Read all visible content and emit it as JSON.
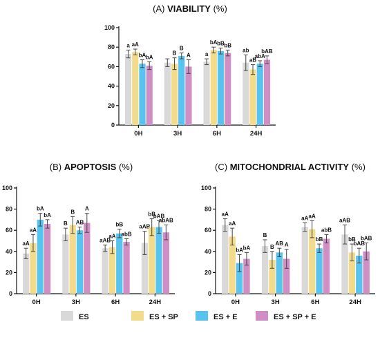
{
  "chart_data": [
    {
      "type": "bar",
      "title_prefix": "(A)",
      "title_bold": "VIABILITY",
      "title_suffix": "(%)",
      "categories": [
        "0H",
        "3H",
        "6H",
        "24H"
      ],
      "ylim": [
        0,
        100
      ],
      "yticks": [
        0,
        20,
        40,
        60,
        80,
        100
      ],
      "series": [
        {
          "name": "ES",
          "color": "#d9d9d9",
          "values": [
            73,
            64,
            65,
            64
          ],
          "errors": [
            4,
            4,
            3,
            8
          ]
        },
        {
          "name": "ES + SP",
          "color": "#f2dc8c",
          "values": [
            75,
            63,
            77,
            57
          ],
          "errors": [
            3,
            6,
            3,
            5
          ]
        },
        {
          "name": "ES + E",
          "color": "#58c3ef",
          "values": [
            63,
            71,
            76,
            63
          ],
          "errors": [
            4,
            3,
            3,
            3
          ]
        },
        {
          "name": "ES + SP + E",
          "color": "#cf8fc4",
          "values": [
            61,
            60,
            74,
            67
          ],
          "errors": [
            4,
            7,
            3,
            4
          ]
        }
      ],
      "annotations": [
        [
          "a",
          "aA",
          "bA",
          "bA"
        ],
        [
          "",
          "B",
          "B",
          "A"
        ],
        [
          "a",
          "bA",
          "bB",
          "bB"
        ],
        [
          "ab",
          "aB",
          "abA",
          "bAB"
        ]
      ]
    },
    {
      "type": "bar",
      "title_prefix": "(B)",
      "title_bold": "APOPTOSIS",
      "title_suffix": "(%)",
      "categories": [
        "0H",
        "3H",
        "6H",
        "24H"
      ],
      "ylim": [
        0,
        100
      ],
      "yticks": [
        0,
        20,
        40,
        60,
        80,
        100
      ],
      "series": [
        {
          "name": "ES",
          "color": "#d9d9d9",
          "values": [
            38,
            56,
            43,
            48
          ],
          "errors": [
            5,
            6,
            3,
            11
          ]
        },
        {
          "name": "ES + SP",
          "color": "#f2dc8c",
          "values": [
            48,
            65,
            44,
            63
          ],
          "errors": [
            8,
            8,
            6,
            8
          ]
        },
        {
          "name": "ES + E",
          "color": "#58c3ef",
          "values": [
            70,
            60,
            57,
            63
          ],
          "errors": [
            6,
            3,
            4,
            6
          ]
        },
        {
          "name": "ES + SP + E",
          "color": "#cf8fc4",
          "values": [
            66,
            67,
            49,
            58
          ],
          "errors": [
            4,
            9,
            3,
            7
          ]
        }
      ],
      "annotations": [
        [
          "aA",
          "aA",
          "bA",
          "bA"
        ],
        [
          "B",
          "B",
          "AB",
          "A"
        ],
        [
          "aAB",
          "aA",
          "bB",
          "abB"
        ],
        [
          "aAB",
          "bB",
          "bAB",
          "abAB"
        ]
      ]
    },
    {
      "type": "bar",
      "title_prefix": "(C)",
      "title_bold": "MITOCHONDRIAL ACTIVITY",
      "title_suffix": "(%)",
      "categories": [
        "0H",
        "3H",
        "6H",
        "24H"
      ],
      "ylim": [
        0,
        100
      ],
      "yticks": [
        0,
        20,
        40,
        60,
        80,
        100
      ],
      "series": [
        {
          "name": "ES",
          "color": "#d9d9d9",
          "values": [
            65,
            45,
            63,
            56
          ],
          "errors": [
            6,
            6,
            4,
            9
          ]
        },
        {
          "name": "ES + SP",
          "color": "#f2dc8c",
          "values": [
            54,
            32,
            61,
            39
          ],
          "errors": [
            8,
            8,
            8,
            8
          ]
        },
        {
          "name": "ES + E",
          "color": "#58c3ef",
          "values": [
            29,
            39,
            43,
            36
          ],
          "errors": [
            8,
            4,
            4,
            7
          ]
        },
        {
          "name": "ES + SP + E",
          "color": "#cf8fc4",
          "values": [
            33,
            33,
            52,
            40
          ],
          "errors": [
            6,
            9,
            4,
            8
          ]
        }
      ],
      "annotations": [
        [
          "aA",
          "aA",
          "bA",
          "bA"
        ],
        [
          "B",
          "B",
          "AB",
          "A"
        ],
        [
          "aA",
          "aA",
          "bB",
          "abB"
        ],
        [
          "aAB",
          "bB",
          "bAB",
          "bAB"
        ]
      ]
    }
  ],
  "legend": [
    {
      "label": "ES",
      "color": "#d9d9d9"
    },
    {
      "label": "ES + SP",
      "color": "#f2dc8c"
    },
    {
      "label": "ES + E",
      "color": "#58c3ef"
    },
    {
      "label": "ES + SP + E",
      "color": "#cf8fc4"
    }
  ]
}
